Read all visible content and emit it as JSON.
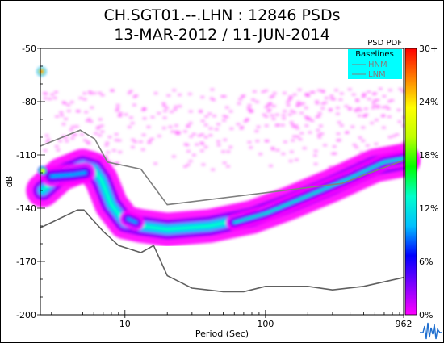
{
  "chart_data": {
    "type": "heatmap",
    "title_line1": "CH.SGT01.--.LHN : 12846 PSDs",
    "title_line2": "13-MAR-2012 / 11-JUN-2014",
    "xlabel": "Period (Sec)",
    "ylabel": "dB",
    "x_scale": "log",
    "xlim": [
      2.5,
      962
    ],
    "ylim": [
      -200,
      -50
    ],
    "x_ticks": [
      {
        "value": 10,
        "label": "10"
      },
      {
        "value": 100,
        "label": "100"
      },
      {
        "value": 962,
        "label": "962"
      }
    ],
    "y_ticks": [
      {
        "value": -50,
        "label": "-50"
      },
      {
        "value": -80,
        "label": "-80"
      },
      {
        "value": -110,
        "label": "-110"
      },
      {
        "value": -140,
        "label": "-140"
      },
      {
        "value": -170,
        "label": "-170"
      },
      {
        "value": -200,
        "label": "-200"
      }
    ],
    "legend": {
      "title": "PSD PDF",
      "box_title": "Baselines",
      "entries": [
        "HNM",
        "LNM"
      ],
      "placement": "top-right"
    },
    "colorbar": {
      "labels": [
        "30+",
        "24%",
        "18%",
        "12%",
        "6%",
        "0%"
      ],
      "range": [
        0,
        30
      ],
      "colors": [
        "#ff00ff",
        "#8000ff",
        "#0000ff",
        "#00bfff",
        "#00ffcc",
        "#00ff00",
        "#c0ff00",
        "#ffff00",
        "#ff8000",
        "#ff0000"
      ]
    },
    "series": [
      {
        "name": "HNM",
        "color": "#808080",
        "points": [
          [
            2.5,
            -105
          ],
          [
            4.8,
            -96
          ],
          [
            6.1,
            -101
          ],
          [
            7.5,
            -114
          ],
          [
            13,
            -118
          ],
          [
            20,
            -138
          ],
          [
            350,
            -126
          ],
          [
            962,
            -113
          ]
        ]
      },
      {
        "name": "LNM",
        "color": "#606060",
        "points": [
          [
            2.5,
            -151
          ],
          [
            3,
            -148
          ],
          [
            4.6,
            -141
          ],
          [
            5.1,
            -141
          ],
          [
            7,
            -153
          ],
          [
            9,
            -161
          ],
          [
            13,
            -165
          ],
          [
            16,
            -161
          ],
          [
            20,
            -178
          ],
          [
            30,
            -185
          ],
          [
            50,
            -187
          ],
          [
            70,
            -187
          ],
          [
            100,
            -184
          ],
          [
            200,
            -184
          ],
          [
            300,
            -186
          ],
          [
            500,
            -184
          ],
          [
            962,
            -179
          ]
        ]
      }
    ],
    "pdf_density": {
      "description_units": "percent of PSDs",
      "ridges": [
        {
          "points": [
            [
              2.6,
              -130
            ],
            [
              3.5,
              -121
            ],
            [
              5,
              -116
            ],
            [
              6,
              -118
            ],
            [
              6.8,
              -124
            ],
            [
              8,
              -138
            ],
            [
              10,
              -148
            ],
            [
              13,
              -150
            ],
            [
              20,
              -152
            ],
            [
              40,
              -150
            ],
            [
              80,
              -145
            ],
            [
              150,
              -137
            ],
            [
              300,
              -127
            ],
            [
              600,
              -116
            ],
            [
              962,
              -113
            ]
          ],
          "peak": 14,
          "width_db": 8
        },
        {
          "points": [
            [
              3,
              -122
            ],
            [
              4.3,
              -121
            ],
            [
              5.2,
              -120
            ]
          ],
          "peak": 9,
          "width_db": 5
        },
        {
          "points": [
            [
              10.5,
              -146
            ],
            [
              12,
              -148
            ]
          ],
          "peak": 10,
          "width_db": 4
        },
        {
          "points": [
            [
              60,
              -148
            ],
            [
              100,
              -143
            ],
            [
              200,
              -133
            ],
            [
              400,
              -123
            ],
            [
              700,
              -114
            ],
            [
              962,
              -112
            ]
          ],
          "peak": 12,
          "width_db": 4
        }
      ],
      "spots": [
        [
          2.55,
          -63,
          30
        ],
        [
          2.6,
          -119,
          24
        ]
      ],
      "scatter_region": {
        "x": [
          2.6,
          962
        ],
        "y": [
          -118,
          -72
        ],
        "level": 2
      }
    }
  }
}
